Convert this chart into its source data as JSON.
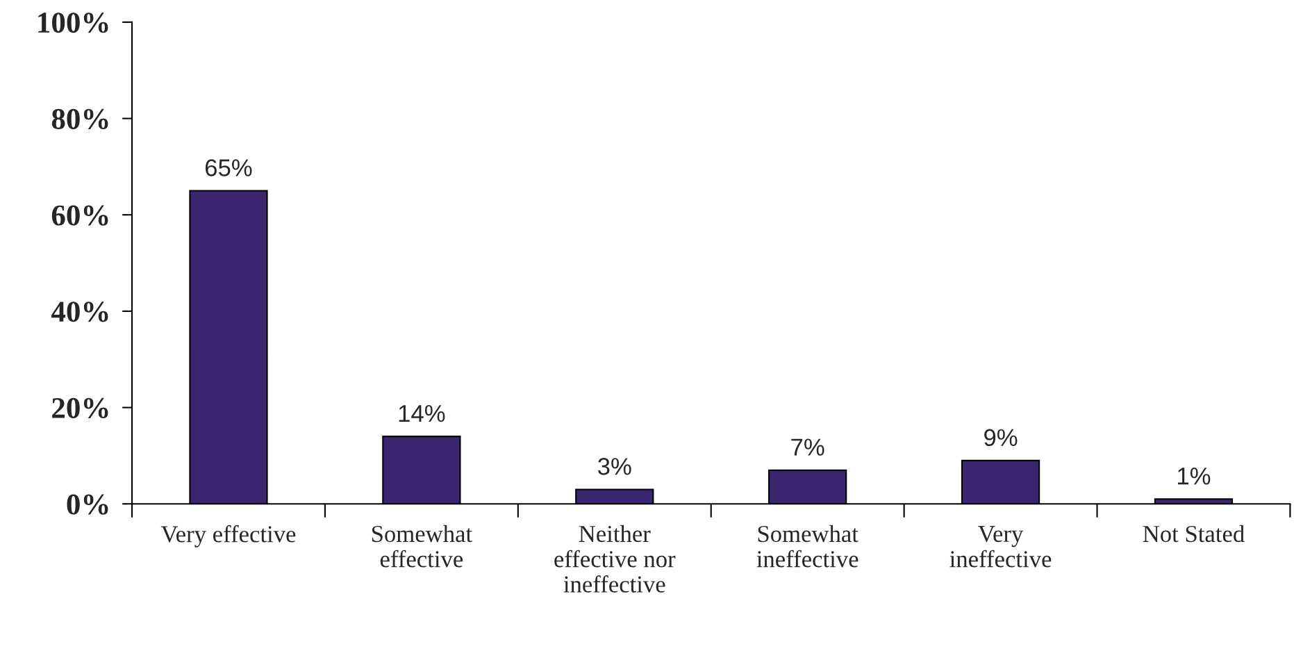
{
  "chart_data": {
    "type": "bar",
    "categories": [
      "Very effective",
      "Somewhat\neffective",
      "Neither\neffective nor\nineffective",
      "Somewhat\nineffective",
      "Very\nineffective",
      "Not Stated"
    ],
    "values": [
      65,
      14,
      3,
      7,
      9,
      1
    ],
    "value_labels": [
      "65%",
      "14%",
      "3%",
      "7%",
      "9%",
      "1%"
    ],
    "color": "#39266e",
    "ylim": [
      0,
      100
    ],
    "yticks": [
      {
        "value": 0,
        "label": "0%"
      },
      {
        "value": 20,
        "label": "20%"
      },
      {
        "value": 40,
        "label": "40%"
      },
      {
        "value": 60,
        "label": "60%"
      },
      {
        "value": 80,
        "label": "80%"
      },
      {
        "value": 100,
        "label": "100%"
      }
    ],
    "grid": false,
    "legend": false
  }
}
